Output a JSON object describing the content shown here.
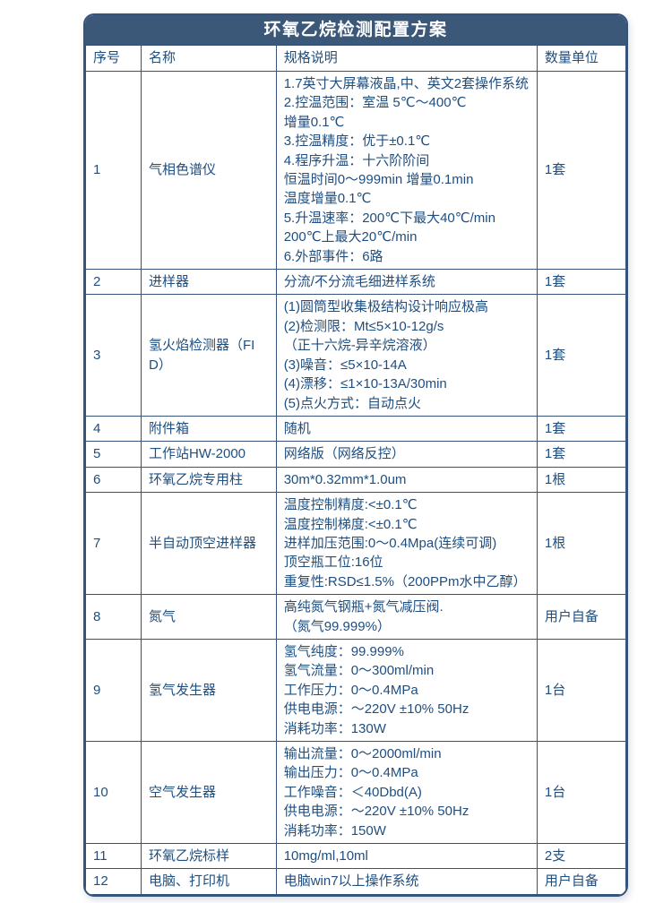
{
  "title": "环氧乙烷检测配置方案",
  "colors": {
    "header_bg": "#3c5878",
    "border": "#35537b",
    "text": "#1f4e7f",
    "title_text": "#ffffff"
  },
  "table": {
    "headers": [
      "序号",
      "名称",
      "规格说明",
      "数量单位"
    ],
    "rows": [
      {
        "no": "1",
        "name": "气相色谱仪",
        "spec": [
          "1.7英寸大屏幕液晶,中、英文2套操作系统",
          "2.控温范围：室温 5℃～400℃",
          "增量0.1℃",
          "3.控温精度：优于±0.1℃",
          "4.程序升温：十六阶阶间",
          "恒温时间0～999min 增量0.1min",
          "温度增量0.1℃",
          "5.升温速率：200℃下最大40℃/min",
          "200℃上最大20℃/min",
          "6.外部事件：6路"
        ],
        "qty": "1套"
      },
      {
        "no": "2",
        "name": "进样器",
        "spec": [
          "分流/不分流毛细进样系统"
        ],
        "qty": "1套"
      },
      {
        "no": "3",
        "name": "氢火焰检测器（FID）",
        "spec": [
          "(1)圆筒型收集极结构设计响应极高",
          "(2)检测限：Mt≤5×10-12g/s",
          "（正十六烷-异辛烷溶液）",
          "(3)噪音：≤5×10-14A",
          "(4)漂移：≤1×10-13A/30min",
          "(5)点火方式：自动点火"
        ],
        "qty": "1套"
      },
      {
        "no": "4",
        "name": "附件箱",
        "spec": [
          "随机"
        ],
        "qty": "1套"
      },
      {
        "no": "5",
        "name": "工作站HW-2000",
        "spec": [
          "网络版（网络反控）"
        ],
        "qty": "1套"
      },
      {
        "no": "6",
        "name": "环氧乙烷专用柱",
        "spec": [
          "30m*0.32mm*1.0um"
        ],
        "qty": "1根"
      },
      {
        "no": "7",
        "name": "半自动顶空进样器",
        "spec": [
          "温度控制精度:<±0.1℃",
          "温度控制梯度:<±0.1℃",
          "进样加压范围:0～0.4Mpa(连续可调)",
          "顶空瓶工位:16位",
          "重复性:RSD≤1.5%（200PPm水中乙醇）"
        ],
        "qty": "1根"
      },
      {
        "no": "8",
        "name": "氮气",
        "spec": [
          "高纯氮气钢瓶+氮气减压阀.",
          "（氮气99.999%）"
        ],
        "qty": "用户自备"
      },
      {
        "no": "9",
        "name": "氢气发生器",
        "spec": [
          "氢气纯度：99.999%",
          "氢气流量：0～300ml/min",
          "工作压力：0～0.4MPa",
          "供电电源：～220V ±10% 50Hz",
          "消耗功率：130W"
        ],
        "qty": "1台"
      },
      {
        "no": "10",
        "name": "空气发生器",
        "spec": [
          "输出流量：0～2000ml/min",
          "输出压力：0～0.4MPa",
          "工作噪音：＜40Dbd(A)",
          "供电电源：～220V ±10% 50Hz",
          "消耗功率：150W"
        ],
        "qty": "1台"
      },
      {
        "no": "11",
        "name": "环氧乙烷标样",
        "spec": [
          "10mg/ml,10ml"
        ],
        "qty": "2支"
      },
      {
        "no": "12",
        "name": "电脑、打印机",
        "spec": [
          "电脑win7以上操作系统"
        ],
        "qty": "用户自备"
      }
    ]
  }
}
